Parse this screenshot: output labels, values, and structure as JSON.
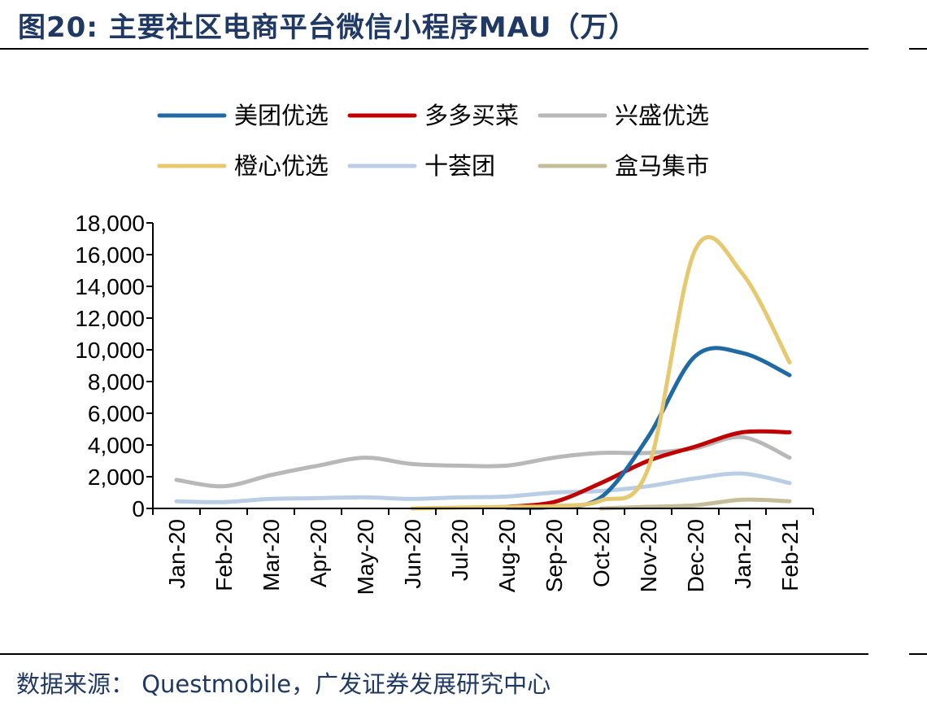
{
  "title": "图20:  主要社区电商平台微信小程序MAU（万）",
  "source": "数据来源：  Questmobile，广发证券发展研究中心",
  "chart_data": {
    "type": "line",
    "title": "主要社区电商平台微信小程序MAU（万）",
    "xlabel": "",
    "ylabel": "",
    "ylim": [
      0,
      18000
    ],
    "yticks": [
      0,
      2000,
      4000,
      6000,
      8000,
      10000,
      12000,
      14000,
      16000,
      18000
    ],
    "ytick_labels": [
      "0",
      "2,000",
      "4,000",
      "6,000",
      "8,000",
      "10,000",
      "12,000",
      "14,000",
      "16,000",
      "18,000"
    ],
    "categories": [
      "Jan-20",
      "Feb-20",
      "Mar-20",
      "Apr-20",
      "May-20",
      "Jun-20",
      "Jul-20",
      "Aug-20",
      "Sep-20",
      "Oct-20",
      "Nov-20",
      "Dec-20",
      "Jan-21",
      "Feb-21"
    ],
    "grid": false,
    "legend_position": "top",
    "series": [
      {
        "name": "美团优选",
        "color": "#1f6aa5",
        "values": [
          null,
          null,
          null,
          null,
          null,
          null,
          null,
          50,
          100,
          700,
          4500,
          9600,
          9800,
          8400
        ]
      },
      {
        "name": "多多买菜",
        "color": "#c00000",
        "values": [
          null,
          null,
          null,
          null,
          null,
          null,
          null,
          100,
          400,
          1600,
          3000,
          3900,
          4800,
          4800
        ]
      },
      {
        "name": "兴盛优选",
        "color": "#b8b8b8",
        "values": [
          1800,
          1400,
          2100,
          2700,
          3200,
          2800,
          2700,
          2700,
          3200,
          3500,
          3500,
          3800,
          4500,
          3200
        ]
      },
      {
        "name": "橙心优选",
        "color": "#e6c86e",
        "values": [
          null,
          null,
          null,
          null,
          null,
          0,
          50,
          100,
          150,
          500,
          2500,
          16300,
          14800,
          9200
        ]
      },
      {
        "name": "十荟团",
        "color": "#b9cde5",
        "values": [
          450,
          400,
          600,
          650,
          700,
          600,
          700,
          750,
          1000,
          1100,
          1400,
          1900,
          2200,
          1600
        ]
      },
      {
        "name": "盒马集市",
        "color": "#c4bd97",
        "values": [
          null,
          null,
          null,
          null,
          null,
          null,
          null,
          null,
          null,
          0,
          100,
          200,
          550,
          450
        ]
      }
    ]
  }
}
